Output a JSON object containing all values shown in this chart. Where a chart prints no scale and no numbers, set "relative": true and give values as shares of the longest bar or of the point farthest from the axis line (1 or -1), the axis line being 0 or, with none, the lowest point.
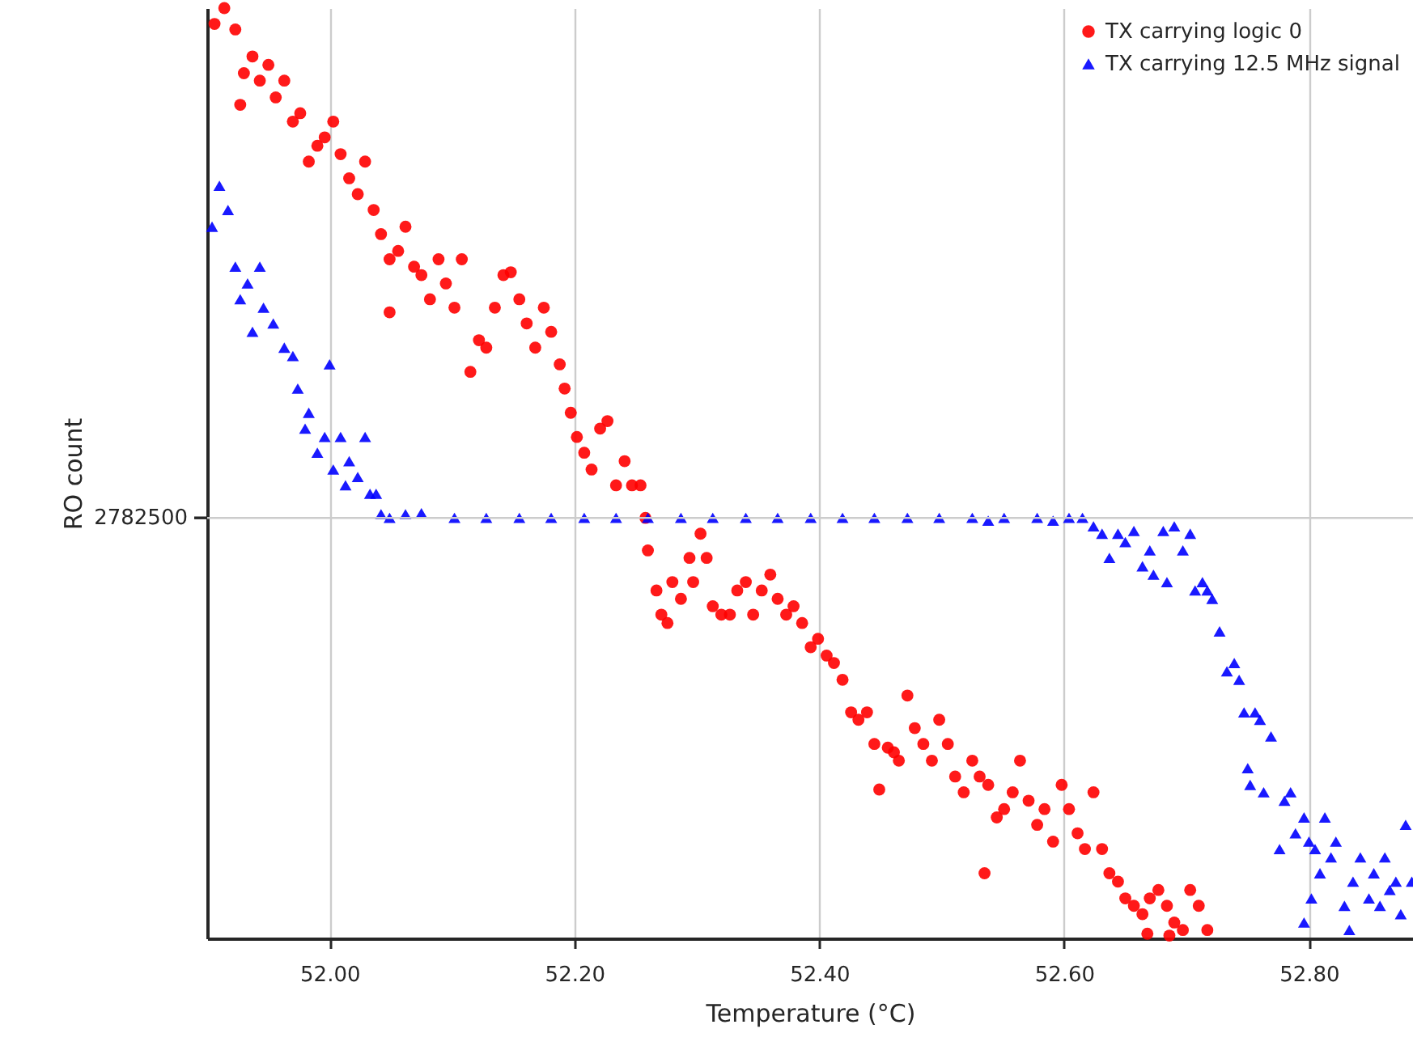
{
  "chart_data": {
    "type": "scatter",
    "xlabel": "Temperature (°C)",
    "ylabel": "RO count",
    "relative": true,
    "xlim": [
      51.9,
      52.885
    ],
    "xticks": [
      {
        "value": 52,
        "label": "52.00"
      },
      {
        "value": 52.2,
        "label": "52.20"
      },
      {
        "value": 52.4,
        "label": "52.40"
      },
      {
        "value": 52.6,
        "label": "52.60"
      },
      {
        "value": 52.8,
        "label": "52.80"
      }
    ],
    "grid": "x",
    "legend": "top right",
    "ref_lines": [
      {
        "axis": "y",
        "value": 0.452,
        "color": "#cccccc"
      }
    ],
    "annotations": [
      "2782500"
    ],
    "series": [
      {
        "name": "TX carrying logic 0",
        "color": "#ff0000",
        "marker": "circle",
        "x": [
          51.906,
          51.914,
          51.923,
          51.927,
          51.93,
          51.937,
          51.943,
          51.95,
          51.956,
          51.963,
          51.97,
          51.976,
          51.983,
          51.99,
          51.996,
          52.003,
          52.009,
          52.016,
          52.023,
          52.029,
          52.036,
          52.042,
          52.049,
          52.049,
          52.056,
          52.062,
          52.069,
          52.075,
          52.082,
          52.089,
          52.095,
          52.102,
          52.108,
          52.115,
          52.122,
          52.128,
          52.135,
          52.142,
          52.148,
          52.155,
          52.161,
          52.168,
          52.175,
          52.181,
          52.188,
          52.192,
          52.197,
          52.202,
          52.208,
          52.214,
          52.221,
          52.227,
          52.234,
          52.241,
          52.247,
          52.254,
          52.258,
          52.26,
          52.267,
          52.271,
          52.276,
          52.28,
          52.287,
          52.294,
          52.297,
          52.303,
          52.308,
          52.313,
          52.32,
          52.327,
          52.333,
          52.34,
          52.346,
          52.353,
          52.36,
          52.366,
          52.373,
          52.379,
          52.386,
          52.393,
          52.399,
          52.406,
          52.412,
          52.419,
          52.426,
          52.432,
          52.439,
          52.445,
          52.449,
          52.456,
          52.461,
          52.465,
          52.472,
          52.478,
          52.485,
          52.492,
          52.498,
          52.505,
          52.511,
          52.518,
          52.525,
          52.531,
          52.535,
          52.538,
          52.545,
          52.551,
          52.558,
          52.564,
          52.571,
          52.578,
          52.584,
          52.591,
          52.598,
          52.604,
          52.611,
          52.617,
          52.624,
          52.631,
          52.637,
          52.644,
          52.65,
          52.657,
          52.664,
          52.67,
          52.677,
          52.684,
          52.69,
          52.697,
          52.703,
          52.71,
          52.717,
          52.668,
          52.686
        ],
        "values": [
          0.983,
          1.0,
          0.977,
          0.896,
          0.93,
          0.948,
          0.922,
          0.939,
          0.904,
          0.922,
          0.878,
          0.887,
          0.835,
          0.852,
          0.861,
          0.878,
          0.843,
          0.817,
          0.8,
          0.835,
          0.783,
          0.757,
          0.73,
          0.673,
          0.739,
          0.765,
          0.722,
          0.713,
          0.687,
          0.73,
          0.704,
          0.678,
          0.73,
          0.609,
          0.643,
          0.635,
          0.678,
          0.713,
          0.716,
          0.687,
          0.661,
          0.635,
          0.678,
          0.652,
          0.617,
          0.591,
          0.565,
          0.539,
          0.522,
          0.504,
          0.548,
          0.556,
          0.487,
          0.513,
          0.487,
          0.487,
          0.452,
          0.417,
          0.374,
          0.348,
          0.339,
          0.383,
          0.365,
          0.409,
          0.383,
          0.435,
          0.409,
          0.357,
          0.348,
          0.348,
          0.374,
          0.383,
          0.348,
          0.374,
          0.391,
          0.365,
          0.348,
          0.357,
          0.339,
          0.313,
          0.322,
          0.304,
          0.296,
          0.278,
          0.243,
          0.235,
          0.243,
          0.209,
          0.16,
          0.205,
          0.2,
          0.191,
          0.261,
          0.226,
          0.209,
          0.191,
          0.235,
          0.209,
          0.174,
          0.157,
          0.191,
          0.174,
          0.07,
          0.165,
          0.13,
          0.139,
          0.157,
          0.191,
          0.148,
          0.122,
          0.139,
          0.104,
          0.165,
          0.139,
          0.113,
          0.096,
          0.157,
          0.096,
          0.07,
          0.061,
          0.043,
          0.035,
          0.026,
          0.043,
          0.052,
          0.035,
          0.017,
          0.009,
          0.052,
          0.035,
          0.009,
          0.005,
          0.003
        ]
      },
      {
        "name": "TX carrying 12.5 MHz signal",
        "color": "#0000ff",
        "marker": "triangle",
        "x": [
          51.904,
          51.91,
          51.917,
          51.923,
          51.927,
          51.933,
          51.937,
          51.943,
          51.946,
          51.954,
          51.963,
          51.97,
          51.974,
          51.98,
          51.983,
          51.99,
          51.996,
          52.0,
          52.003,
          52.009,
          52.013,
          52.016,
          52.023,
          52.029,
          52.033,
          52.038,
          52.042,
          52.049,
          52.062,
          52.075,
          52.102,
          52.128,
          52.155,
          52.181,
          52.208,
          52.234,
          52.26,
          52.287,
          52.313,
          52.34,
          52.366,
          52.393,
          52.419,
          52.445,
          52.472,
          52.498,
          52.525,
          52.538,
          52.551,
          52.578,
          52.591,
          52.604,
          52.615,
          52.624,
          52.631,
          52.637,
          52.644,
          52.65,
          52.657,
          52.664,
          52.67,
          52.673,
          52.681,
          52.684,
          52.69,
          52.697,
          52.703,
          52.707,
          52.713,
          52.717,
          52.721,
          52.727,
          52.733,
          52.739,
          52.743,
          52.747,
          52.75,
          52.752,
          52.756,
          52.76,
          52.763,
          52.769,
          52.776,
          52.78,
          52.785,
          52.789,
          52.796,
          52.796,
          52.8,
          52.802,
          52.805,
          52.809,
          52.813,
          52.818,
          52.822,
          52.829,
          52.833,
          52.836,
          52.842,
          52.849,
          52.853,
          52.858,
          52.862,
          52.866,
          52.871,
          52.875,
          52.879,
          52.884
        ],
        "values": [
          0.765,
          0.809,
          0.783,
          0.722,
          0.687,
          0.704,
          0.652,
          0.722,
          0.678,
          0.661,
          0.635,
          0.626,
          0.591,
          0.548,
          0.565,
          0.522,
          0.539,
          0.617,
          0.504,
          0.539,
          0.487,
          0.513,
          0.496,
          0.539,
          0.478,
          0.478,
          0.456,
          0.452,
          0.456,
          0.457,
          0.452,
          0.452,
          0.452,
          0.452,
          0.452,
          0.452,
          0.452,
          0.452,
          0.452,
          0.452,
          0.452,
          0.452,
          0.452,
          0.452,
          0.452,
          0.452,
          0.452,
          0.449,
          0.452,
          0.452,
          0.449,
          0.452,
          0.452,
          0.443,
          0.435,
          0.409,
          0.435,
          0.426,
          0.438,
          0.4,
          0.417,
          0.391,
          0.438,
          0.383,
          0.443,
          0.417,
          0.435,
          0.374,
          0.383,
          0.374,
          0.365,
          0.33,
          0.287,
          0.296,
          0.278,
          0.243,
          0.183,
          0.165,
          0.243,
          0.235,
          0.157,
          0.217,
          0.096,
          0.148,
          0.157,
          0.113,
          0.13,
          0.017,
          0.104,
          0.043,
          0.096,
          0.07,
          0.13,
          0.087,
          0.104,
          0.035,
          0.009,
          0.061,
          0.087,
          0.043,
          0.07,
          0.035,
          0.087,
          0.052,
          0.061,
          0.026,
          0.122,
          0.061
        ]
      }
    ]
  }
}
